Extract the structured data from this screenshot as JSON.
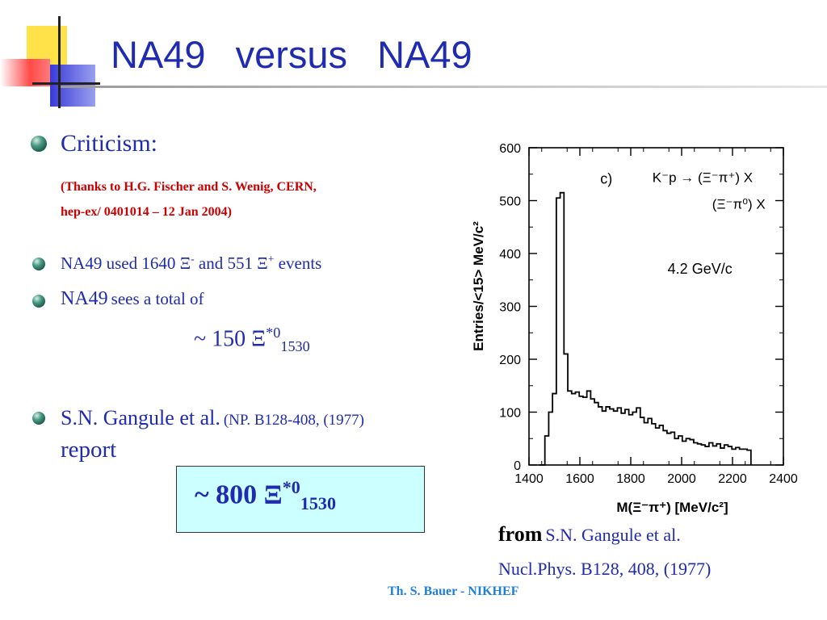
{
  "title": "NA49 versus NA49",
  "criticism": {
    "heading": "Criticism:",
    "thanks_line1": "(Thanks to H.G. Fischer and S. Wenig, CERN,",
    "thanks_line2": "hep-ex/ 0401014 – 12 Jan 2004)"
  },
  "bullets": {
    "b1": {
      "pre": "NA49 used 1640 Ξ",
      "sup1": "-",
      "mid": "and 551 Ξ",
      "sup2": "+",
      "post": "events"
    },
    "b2": {
      "big": "NA49",
      "small": "sees a total of"
    },
    "b2_value": {
      "pre": "~ 150 Ξ",
      "sup": "*0",
      "sub": "1530"
    },
    "b3": {
      "main": "S.N. Gangule et al.",
      "small": "(NP. B128-408, (1977)",
      "line2": "report"
    }
  },
  "box": {
    "pre": "~ 800 Ξ",
    "sup": "*0",
    "sub": "1530",
    "bg": "#ccffff"
  },
  "reference": {
    "from": "from",
    "authors": "S.N. Gangule et al.",
    "journal": "Nucl.Phys. B128, 408, (1977)"
  },
  "footer": "Th. S. Bauer - NIKHEF",
  "colors": {
    "accent": "#1f2bb0",
    "red": "#cc0000",
    "footer": "#1f7fd8"
  },
  "chart_data": {
    "type": "line",
    "xlabel": "M(Ξ⁻π⁺)  [MeV/c²]",
    "ylabel": "Entries/<15> MeV/c²",
    "xlim": [
      1400,
      2400
    ],
    "ylim": [
      0,
      600
    ],
    "x_ticks": [
      1400,
      1600,
      1800,
      2000,
      2200,
      2400
    ],
    "y_ticks": [
      0,
      100,
      200,
      300,
      400,
      500,
      600
    ],
    "annotations": {
      "panel": "c)",
      "reaction1": "K⁻p → (Ξ⁻π⁺) X",
      "reaction2": "(Ξ⁻π⁰) X",
      "momentum": "4.2 GeV/c"
    },
    "grid": false,
    "series": [
      {
        "x": [
          1455,
          1470,
          1485,
          1500,
          1515,
          1530,
          1545,
          1560,
          1575,
          1590,
          1605,
          1620,
          1635,
          1650,
          1665,
          1680,
          1695,
          1710,
          1725,
          1740,
          1755,
          1770,
          1785,
          1800,
          1815,
          1830,
          1845,
          1860,
          1875,
          1890,
          1905,
          1920,
          1935,
          1950,
          1965,
          1980,
          1995,
          2010,
          2025,
          2040,
          2055,
          2070,
          2085,
          2100,
          2115,
          2130,
          2145,
          2160,
          2175,
          2190,
          2205,
          2220,
          2235,
          2250,
          2265
        ],
        "y": [
          0,
          55,
          100,
          135,
          505,
          515,
          210,
          140,
          135,
          138,
          130,
          128,
          140,
          125,
          118,
          110,
          102,
          110,
          106,
          102,
          108,
          98,
          105,
          95,
          100,
          108,
          90,
          80,
          88,
          78,
          70,
          75,
          65,
          60,
          62,
          50,
          55,
          45,
          50,
          48,
          42,
          40,
          38,
          35,
          42,
          36,
          40,
          32,
          38,
          35,
          30,
          33,
          30,
          30,
          28
        ]
      }
    ]
  }
}
